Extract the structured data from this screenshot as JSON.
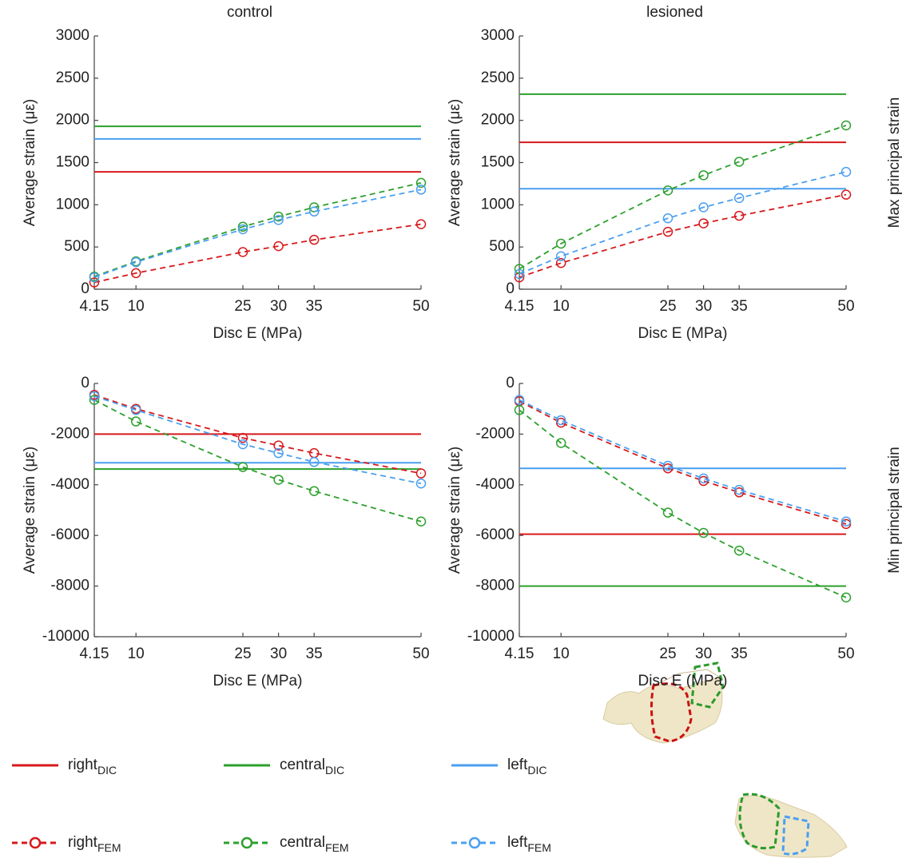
{
  "chart_data": [
    {
      "type": "line",
      "title": "control",
      "xlabel": "Disc E (MPa)",
      "ylabel": "Average strain (με)",
      "x": [
        4.15,
        10,
        25,
        30,
        35,
        50
      ],
      "xlim": [
        4.15,
        50
      ],
      "xticks": [
        4.15,
        10,
        25,
        30,
        35,
        50
      ],
      "ylim": [
        0,
        3000
      ],
      "yticks": [
        0,
        500,
        1000,
        1500,
        2000,
        2500,
        3000
      ],
      "series": [
        {
          "name": "right",
          "method": "DIC",
          "color": "#d7191c",
          "style": "solid",
          "value": 1390
        },
        {
          "name": "central",
          "method": "DIC",
          "color": "#2ca02c",
          "style": "solid",
          "value": 1930
        },
        {
          "name": "left",
          "method": "DIC",
          "color": "#4a9ff0",
          "style": "solid",
          "value": 1780
        },
        {
          "name": "right",
          "method": "FEM",
          "color": "#d7191c",
          "style": "dashed",
          "values": [
            80,
            190,
            440,
            510,
            585,
            770
          ]
        },
        {
          "name": "central",
          "method": "FEM",
          "color": "#2ca02c",
          "style": "dashed",
          "values": [
            150,
            330,
            740,
            860,
            970,
            1260
          ]
        },
        {
          "name": "left",
          "method": "FEM",
          "color": "#4a9ff0",
          "style": "dashed",
          "values": [
            140,
            320,
            710,
            820,
            920,
            1180
          ]
        }
      ]
    },
    {
      "type": "line",
      "title": "lesioned",
      "side_label": "Max principal strain",
      "xlabel": "Disc E (MPa)",
      "ylabel": "Average strain (με)",
      "x": [
        4.15,
        10,
        25,
        30,
        35,
        50
      ],
      "xlim": [
        4.15,
        50
      ],
      "xticks": [
        4.15,
        10,
        25,
        30,
        35,
        50
      ],
      "ylim": [
        0,
        3000
      ],
      "yticks": [
        0,
        500,
        1000,
        1500,
        2000,
        2500,
        3000
      ],
      "series": [
        {
          "name": "right",
          "method": "DIC",
          "color": "#d7191c",
          "style": "solid",
          "value": 1740
        },
        {
          "name": "central",
          "method": "DIC",
          "color": "#2ca02c",
          "style": "solid",
          "value": 2310
        },
        {
          "name": "left",
          "method": "DIC",
          "color": "#4a9ff0",
          "style": "solid",
          "value": 1190
        },
        {
          "name": "right",
          "method": "FEM",
          "color": "#d7191c",
          "style": "dashed",
          "values": [
            140,
            310,
            680,
            780,
            870,
            1120
          ]
        },
        {
          "name": "central",
          "method": "FEM",
          "color": "#2ca02c",
          "style": "dashed",
          "values": [
            240,
            540,
            1170,
            1350,
            1510,
            1940
          ]
        },
        {
          "name": "left",
          "method": "FEM",
          "color": "#4a9ff0",
          "style": "dashed",
          "values": [
            180,
            390,
            840,
            970,
            1080,
            1390
          ]
        }
      ]
    },
    {
      "type": "line",
      "xlabel": "Disc E (MPa)",
      "ylabel": "Average strain (με)",
      "x": [
        4.15,
        10,
        25,
        30,
        35,
        50
      ],
      "xlim": [
        4.15,
        50
      ],
      "xticks": [
        4.15,
        10,
        25,
        30,
        35,
        50
      ],
      "ylim": [
        -10000,
        0
      ],
      "yticks": [
        -10000,
        -8000,
        -6000,
        -4000,
        -2000,
        0
      ],
      "series": [
        {
          "name": "right",
          "method": "DIC",
          "color": "#d7191c",
          "style": "solid",
          "value": -2000
        },
        {
          "name": "central",
          "method": "DIC",
          "color": "#2ca02c",
          "style": "solid",
          "value": -3380
        },
        {
          "name": "left",
          "method": "DIC",
          "color": "#4a9ff0",
          "style": "solid",
          "value": -3130
        },
        {
          "name": "right",
          "method": "FEM",
          "color": "#d7191c",
          "style": "dashed",
          "values": [
            -450,
            -1000,
            -2150,
            -2450,
            -2750,
            -3550
          ]
        },
        {
          "name": "central",
          "method": "FEM",
          "color": "#2ca02c",
          "style": "dashed",
          "values": [
            -650,
            -1500,
            -3300,
            -3800,
            -4250,
            -5450
          ]
        },
        {
          "name": "left",
          "method": "FEM",
          "color": "#4a9ff0",
          "style": "dashed",
          "values": [
            -500,
            -1050,
            -2400,
            -2750,
            -3100,
            -3950
          ]
        }
      ]
    },
    {
      "type": "line",
      "side_label": "Min principal strain",
      "xlabel": "Disc E (MPa)",
      "ylabel": "Average strain (με)",
      "x": [
        4.15,
        10,
        25,
        30,
        35,
        50
      ],
      "xlim": [
        4.15,
        50
      ],
      "xticks": [
        4.15,
        10,
        25,
        30,
        35,
        50
      ],
      "ylim": [
        -10000,
        0
      ],
      "yticks": [
        -10000,
        -8000,
        -6000,
        -4000,
        -2000,
        0
      ],
      "series": [
        {
          "name": "right",
          "method": "DIC",
          "color": "#d7191c",
          "style": "solid",
          "value": -5950
        },
        {
          "name": "central",
          "method": "DIC",
          "color": "#2ca02c",
          "style": "solid",
          "value": -8000
        },
        {
          "name": "left",
          "method": "DIC",
          "color": "#4a9ff0",
          "style": "solid",
          "value": -3350
        },
        {
          "name": "right",
          "method": "FEM",
          "color": "#d7191c",
          "style": "dashed",
          "values": [
            -700,
            -1550,
            -3350,
            -3850,
            -4300,
            -5550
          ]
        },
        {
          "name": "central",
          "method": "FEM",
          "color": "#2ca02c",
          "style": "dashed",
          "values": [
            -1050,
            -2350,
            -5100,
            -5900,
            -6600,
            -8450
          ]
        },
        {
          "name": "left",
          "method": "FEM",
          "color": "#4a9ff0",
          "style": "dashed",
          "values": [
            -650,
            -1450,
            -3250,
            -3750,
            -4200,
            -5450
          ]
        }
      ]
    }
  ]
}
